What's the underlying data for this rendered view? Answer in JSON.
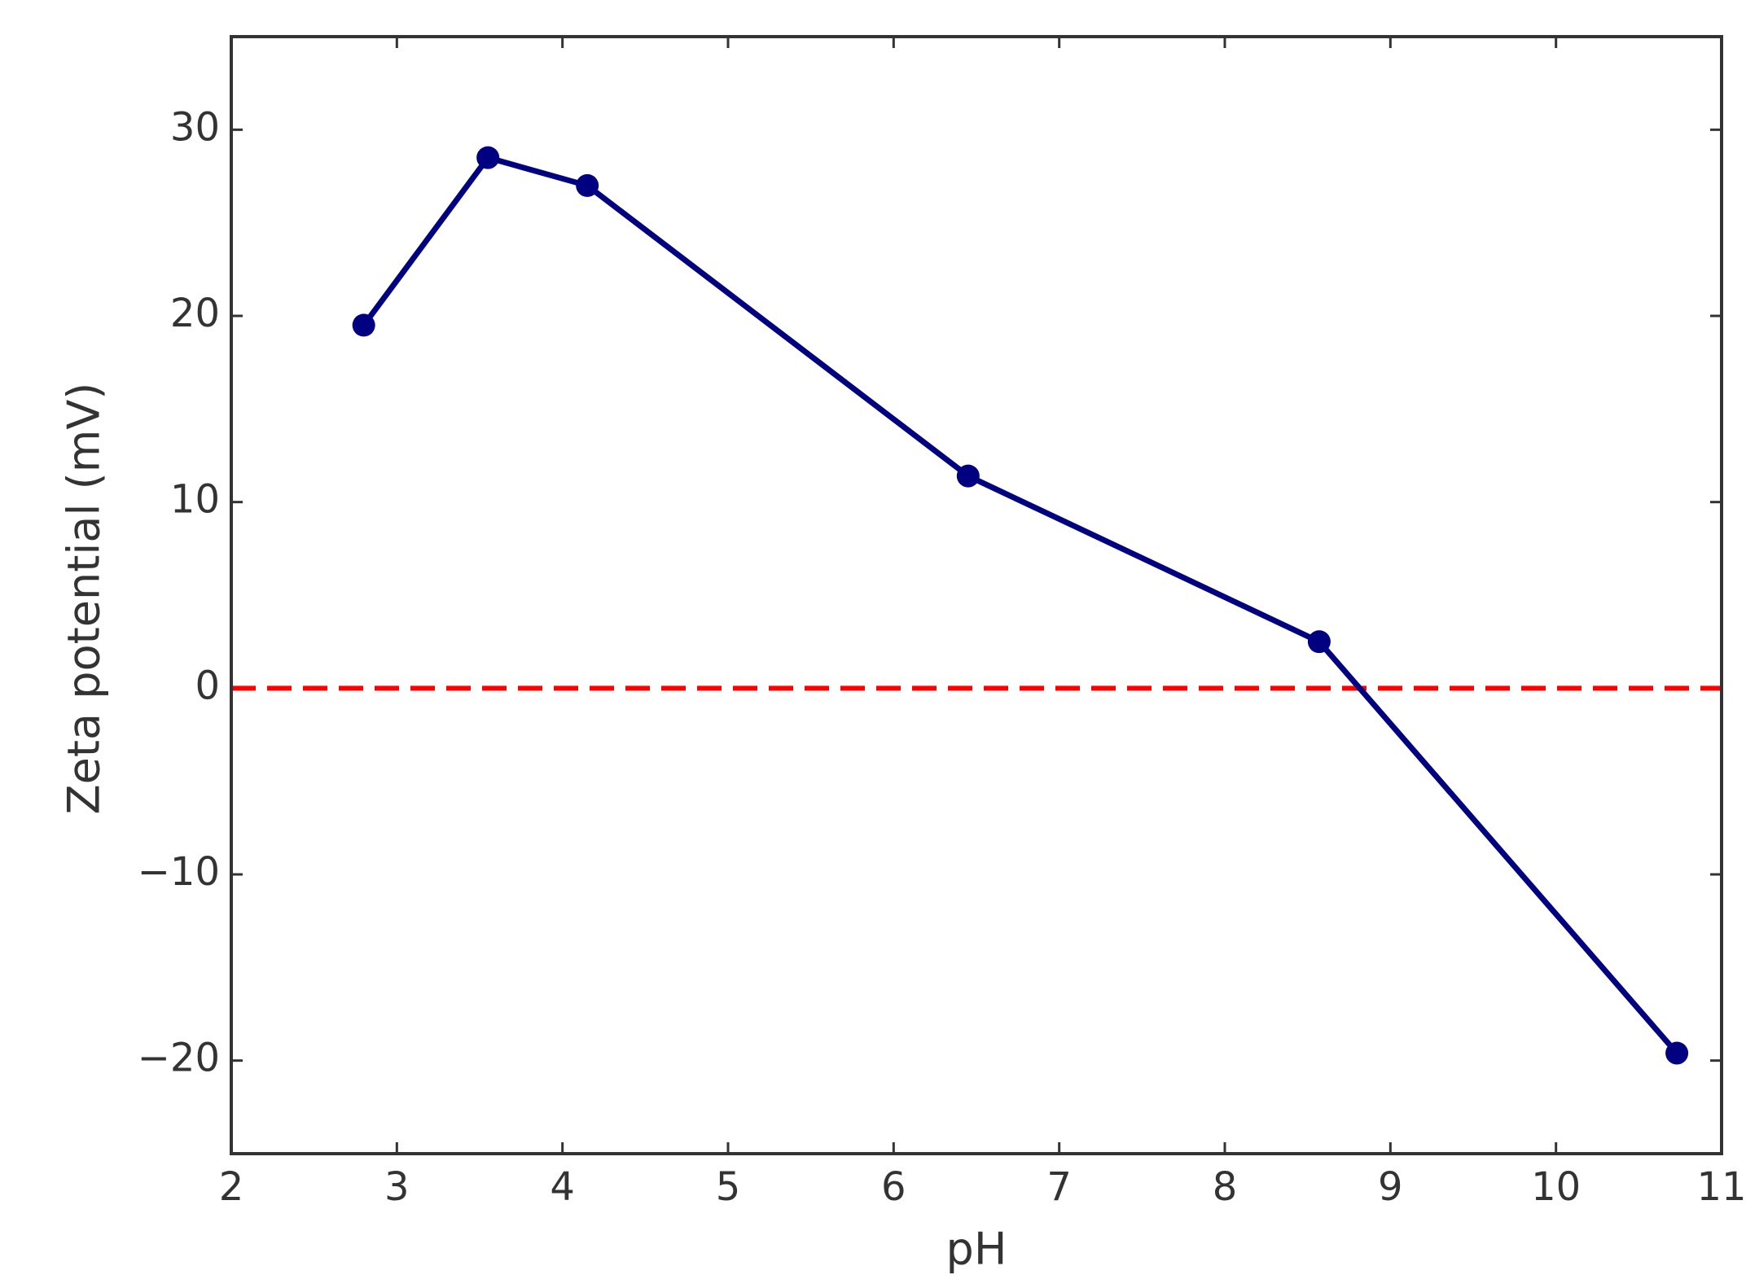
{
  "chart_data": {
    "type": "line",
    "x_label": "pH",
    "y_label": "Zeta potential (mV)",
    "x": [
      2.8,
      3.55,
      4.15,
      6.45,
      8.57,
      10.73
    ],
    "series": [
      {
        "color": "#000080",
        "marker": "circle",
        "values": [
          19.5,
          28.5,
          27.0,
          11.4,
          2.5,
          -19.6
        ]
      }
    ],
    "xlim": [
      2,
      11
    ],
    "xticks": [
      2,
      3,
      4,
      5,
      6,
      7,
      8,
      9,
      10,
      11
    ],
    "ylim": [
      -25,
      35
    ],
    "yticks": [
      {
        "value": -20,
        "label": "−20"
      },
      {
        "value": -10,
        "label": "−10"
      },
      0,
      10,
      20,
      30
    ],
    "hlines": [
      {
        "y": 0,
        "color": "#ff0000",
        "linestyle": "dashed"
      }
    ],
    "grid": false,
    "tick_direction": "in"
  }
}
